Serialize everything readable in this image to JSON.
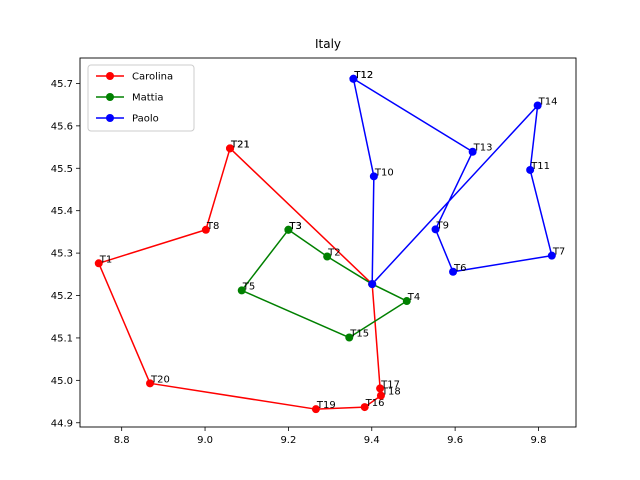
{
  "chart_data": {
    "type": "line",
    "title": "Italy",
    "xlabel": "",
    "ylabel": "",
    "xlim": [
      8.7,
      9.89
    ],
    "ylim": [
      44.89,
      45.76
    ],
    "x_ticks": [
      "8.8",
      "9.0",
      "9.2",
      "9.4",
      "9.6",
      "9.8"
    ],
    "y_ticks": [
      "44.9",
      "45.0",
      "45.1",
      "45.2",
      "45.3",
      "45.4",
      "45.5",
      "45.6",
      "45.7"
    ],
    "legend_position": "top-left",
    "grid": false,
    "series": [
      {
        "name": "Carolina",
        "color": "#ff0000",
        "points": [
          {
            "label": "T21",
            "x": 9.06,
            "y": 45.547
          },
          {
            "label": "T8",
            "x": 9.002,
            "y": 45.355
          },
          {
            "label": "T1",
            "x": 8.745,
            "y": 45.276
          },
          {
            "label": "T20",
            "x": 8.868,
            "y": 44.993
          },
          {
            "label": "T19",
            "x": 9.266,
            "y": 44.932
          },
          {
            "label": "T16",
            "x": 9.383,
            "y": 44.937
          },
          {
            "label": "T18",
            "x": 9.422,
            "y": 44.964
          },
          {
            "label": "T17",
            "x": 9.42,
            "y": 44.981
          },
          {
            "label": "",
            "x": 9.401,
            "y": 45.227
          },
          {
            "label": "T21",
            "x": 9.06,
            "y": 45.547
          }
        ]
      },
      {
        "name": "Mattia",
        "color": "#008000",
        "points": [
          {
            "label": "T3",
            "x": 9.2,
            "y": 45.355
          },
          {
            "label": "T2",
            "x": 9.293,
            "y": 45.292
          },
          {
            "label": "",
            "x": 9.401,
            "y": 45.227
          },
          {
            "label": "T4",
            "x": 9.484,
            "y": 45.187
          },
          {
            "label": "T15",
            "x": 9.346,
            "y": 45.101
          },
          {
            "label": "T5",
            "x": 9.088,
            "y": 45.212
          },
          {
            "label": "T3",
            "x": 9.2,
            "y": 45.355
          }
        ]
      },
      {
        "name": "Paolo",
        "color": "#0000ff",
        "points": [
          {
            "label": "T12",
            "x": 9.356,
            "y": 45.711
          },
          {
            "label": "T13",
            "x": 9.642,
            "y": 45.539
          },
          {
            "label": "T9",
            "x": 9.553,
            "y": 45.356
          },
          {
            "label": "T6",
            "x": 9.595,
            "y": 45.256
          },
          {
            "label": "T7",
            "x": 9.832,
            "y": 45.294
          },
          {
            "label": "T11",
            "x": 9.78,
            "y": 45.496
          },
          {
            "label": "T14",
            "x": 9.798,
            "y": 45.648
          },
          {
            "label": "",
            "x": 9.401,
            "y": 45.227
          },
          {
            "label": "T10",
            "x": 9.405,
            "y": 45.481
          },
          {
            "label": "T12",
            "x": 9.356,
            "y": 45.711
          }
        ]
      }
    ]
  }
}
